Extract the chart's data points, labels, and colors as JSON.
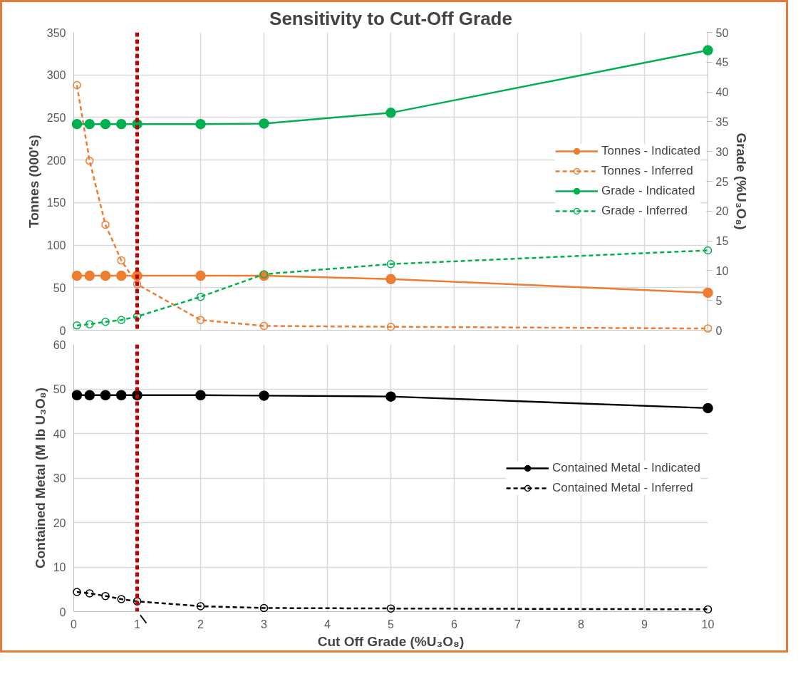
{
  "chart_data": [
    {
      "type": "line",
      "title": "Sensitivity to Cut-Off Grade",
      "ylabel": "Tonnes (000's)",
      "y2label": "Grade (%U₃O₈)",
      "x": [
        0.05,
        0.25,
        0.5,
        0.75,
        1,
        2,
        3,
        5,
        10
      ],
      "xlim": [
        0,
        10
      ],
      "xticks": [
        0,
        1,
        2,
        3,
        4,
        5,
        6,
        7,
        8,
        9,
        10
      ],
      "ylim": [
        0,
        350
      ],
      "yticks": [
        0,
        50,
        100,
        150,
        200,
        250,
        300,
        350
      ],
      "y2lim": [
        0,
        50
      ],
      "y2ticks": [
        0,
        5,
        10,
        15,
        20,
        25,
        30,
        35,
        40,
        45,
        50
      ],
      "tick_labels": "y",
      "grid": true,
      "legend": "right",
      "marker": "circle",
      "ref_lines": [
        {
          "axis": "x",
          "value": 1,
          "color": "#c00000",
          "line_style": "dashed"
        }
      ],
      "series": [
        {
          "name": "Tonnes - Indicated",
          "color": "#ed7d31",
          "line_style": "solid",
          "values": [
            64,
            64,
            64,
            64,
            64,
            64,
            64,
            60,
            44
          ]
        },
        {
          "name": "Tonnes - Inferred",
          "color": "#ed7d31",
          "line_style": "dashed",
          "values": [
            288,
            199,
            124,
            82,
            54,
            12,
            5,
            4,
            2
          ]
        },
        {
          "name": "Grade - Indicated",
          "color": "#00b050",
          "line_style": "solid",
          "axis": "y2",
          "values": [
            34.6,
            34.6,
            34.6,
            34.6,
            34.6,
            34.6,
            34.7,
            36.5,
            47
          ]
        },
        {
          "name": "Grade - Inferred",
          "color": "#00b050",
          "line_style": "dashed",
          "axis": "y2",
          "values": [
            0.8,
            1.0,
            1.4,
            1.7,
            2.3,
            5.6,
            9.4,
            11.1,
            13.4
          ]
        }
      ]
    },
    {
      "type": "line",
      "xlabel": "Cut Off Grade (%U₃O₈)",
      "ylabel": "Contained Metal (M lb U₃O₈)",
      "x": [
        0.05,
        0.25,
        0.5,
        0.75,
        1,
        2,
        3,
        5,
        10
      ],
      "xlim": [
        0,
        10
      ],
      "xticks": [
        0,
        1,
        2,
        3,
        4,
        5,
        6,
        7,
        8,
        9,
        10
      ],
      "ylim": [
        0,
        60
      ],
      "yticks": [
        0,
        10,
        20,
        30,
        40,
        50,
        60
      ],
      "grid": true,
      "legend": "right",
      "marker": "circle",
      "ref_lines": [
        {
          "axis": "x",
          "value": 1,
          "color": "#c00000",
          "line_style": "dashed"
        }
      ],
      "series": [
        {
          "name": "Contained Metal - Indicated",
          "color": "#000000",
          "line_style": "solid",
          "values": [
            48.6,
            48.6,
            48.6,
            48.6,
            48.6,
            48.6,
            48.5,
            48.3,
            45.7
          ]
        },
        {
          "name": "Contained Metal - Inferred",
          "color": "#000000",
          "line_style": "dashed",
          "values": [
            4.4,
            4.1,
            3.5,
            2.8,
            2.3,
            1.2,
            0.8,
            0.7,
            0.5
          ]
        }
      ]
    }
  ]
}
